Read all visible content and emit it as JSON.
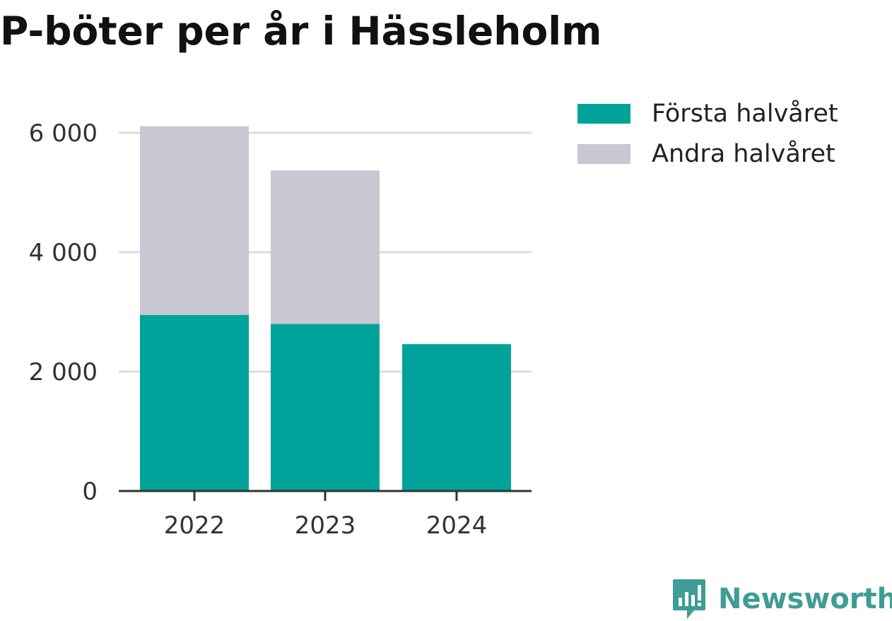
{
  "title": "P-böter per år i Hässleholm",
  "colors": {
    "first_half": "#00a39a",
    "second_half": "#c8c7d2",
    "grid": "#dddddd",
    "axis": "#333333",
    "tick_text": "#333333",
    "logo": "#3f9c96"
  },
  "legend": {
    "items": [
      {
        "label": "Första halvåret",
        "color": "#00a39a"
      },
      {
        "label": "Andra halvåret",
        "color": "#c8c7d2"
      }
    ]
  },
  "chart_data": {
    "type": "bar",
    "stacked": true,
    "categories": [
      "2022",
      "2023",
      "2024"
    ],
    "series": [
      {
        "name": "Första halvåret",
        "values": [
          2950,
          2800,
          2460
        ]
      },
      {
        "name": "Andra halvåret",
        "values": [
          3160,
          2570,
          null
        ]
      }
    ],
    "title": "P-böter per år i Hässleholm",
    "xlabel": "",
    "ylabel": "",
    "ylim": [
      0,
      6000
    ],
    "yticks": [
      0,
      2000,
      4000,
      6000
    ],
    "ytick_labels": [
      "0",
      "2 000",
      "4 000",
      "6 000"
    ],
    "grid": true,
    "legend_position": "top-right"
  },
  "brand": {
    "name": "Newsworthy",
    "icon": "newsworthy-logo-icon"
  }
}
